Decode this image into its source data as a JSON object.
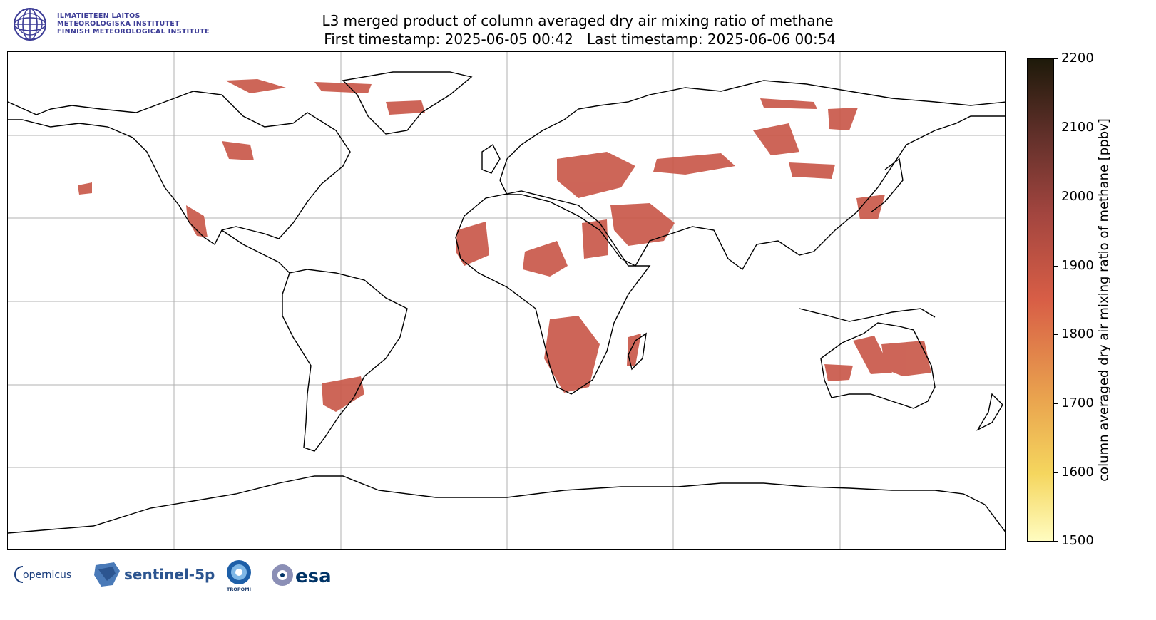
{
  "institute": {
    "lines": [
      "ILMATIETEEN LAITOS",
      "METEOROLOGISKA INSTITUTET",
      "FINNISH METEOROLOGICAL INSTITUTE"
    ]
  },
  "title": {
    "line1": "L3 merged product of column averaged dry air mixing ratio of methane",
    "line2": " First timestamp: 2025-06-05 00:42   Last timestamp: 2025-06-06 00:54"
  },
  "colorbar": {
    "label": "column averaged dry air mixing ratio of methane [ppbv]",
    "min": 1500,
    "max": 2200,
    "ticks": [
      "2200",
      "2100",
      "2000",
      "1900",
      "1800",
      "1700",
      "1600",
      "1500"
    ]
  },
  "logos": {
    "copernicus": "opernicus",
    "sentinel": "sentinel-5p",
    "tropomi": "TROPOMI",
    "esa": "esa"
  },
  "map": {
    "projection": "plate-carree",
    "gridlines": true,
    "gridline_longitudes": [
      -120,
      -60,
      0,
      60,
      120
    ],
    "gridline_latitudes": [
      60,
      30,
      0,
      -30,
      -60
    ],
    "data_color": "#c9594a"
  }
}
